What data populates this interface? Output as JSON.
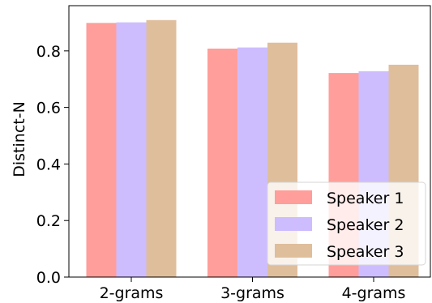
{
  "chart_data": {
    "type": "bar",
    "title": "",
    "xlabel": "",
    "ylabel": "Distinct-N",
    "categories": [
      "2-grams",
      "3-grams",
      "4-grams"
    ],
    "series": [
      {
        "name": "Speaker 1",
        "values": [
          0.899,
          0.808,
          0.722
        ],
        "color": "#ff9e9a"
      },
      {
        "name": "Speaker 2",
        "values": [
          0.901,
          0.812,
          0.728
        ],
        "color": "#cdbdff"
      },
      {
        "name": "Speaker 3",
        "values": [
          0.909,
          0.829,
          0.751
        ],
        "color": "#dfbe9c"
      }
    ],
    "ylim": [
      0,
      0.96
    ],
    "yticks": [
      0.0,
      0.2,
      0.4,
      0.6,
      0.8
    ],
    "ytick_labels": [
      "0.0",
      "0.2",
      "0.4",
      "0.6",
      "0.8"
    ],
    "grid": false,
    "legend": {
      "position": "lower-right"
    }
  }
}
